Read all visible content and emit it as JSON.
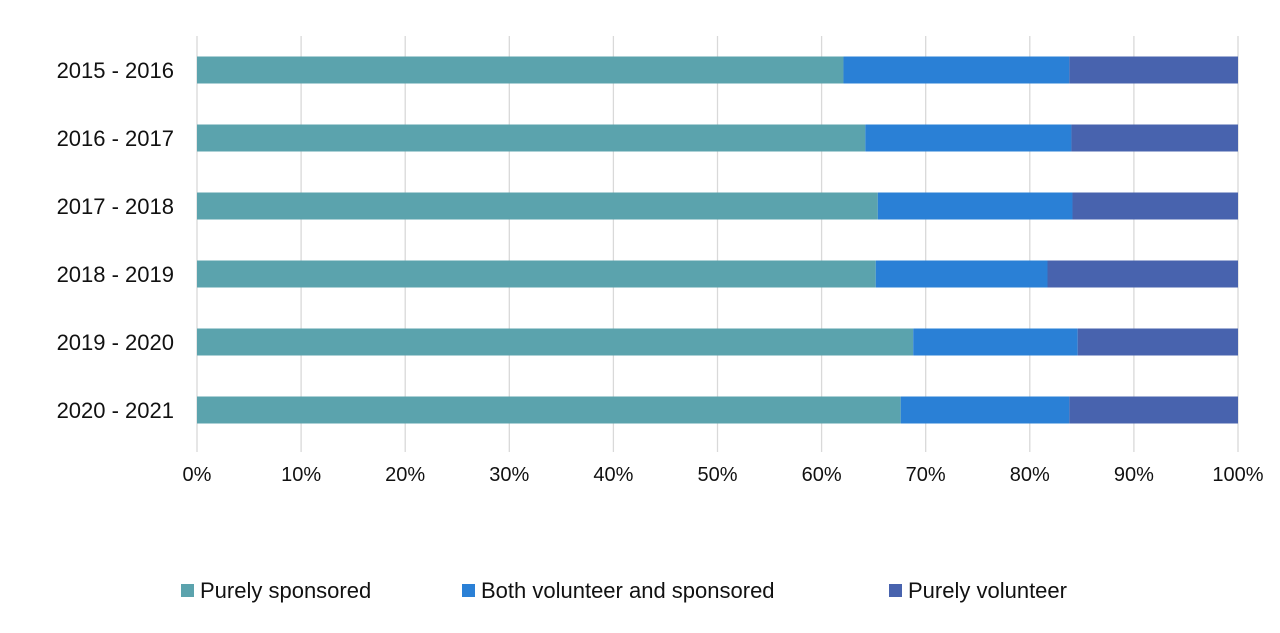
{
  "chart_data": {
    "type": "bar",
    "orientation": "horizontal",
    "stacked": "100%",
    "categories": [
      "2015 - 2016",
      "2016 - 2017",
      "2017 - 2018",
      "2018 - 2019",
      "2019 - 2020",
      "2020 - 2021"
    ],
    "series": [
      {
        "name": "Purely sponsored",
        "color": "#5BA3AD",
        "values": [
          62.1,
          64.2,
          65.4,
          65.2,
          68.8,
          67.6
        ]
      },
      {
        "name": "Both volunteer and sponsored",
        "color": "#2A80D6",
        "values": [
          21.7,
          19.8,
          18.7,
          16.5,
          15.8,
          16.2
        ]
      },
      {
        "name": "Purely volunteer",
        "color": "#4863AE",
        "values": [
          16.2,
          16.0,
          15.9,
          18.3,
          15.4,
          16.2
        ]
      }
    ],
    "xlim": [
      0,
      100
    ],
    "xticks": [
      "0%",
      "10%",
      "20%",
      "30%",
      "40%",
      "50%",
      "60%",
      "70%",
      "80%",
      "90%",
      "100%"
    ],
    "grid": true,
    "legend": "bottom"
  }
}
